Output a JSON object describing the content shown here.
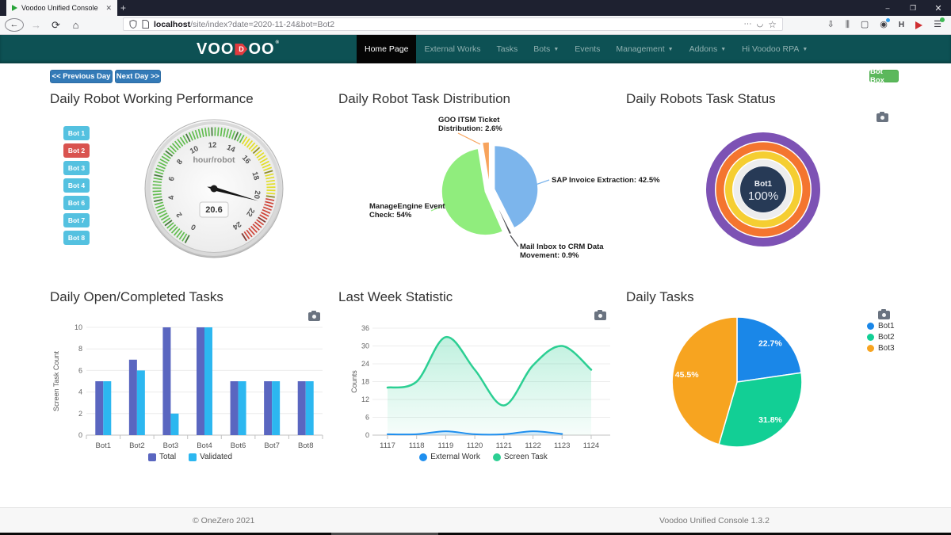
{
  "browser": {
    "tab": {
      "title": "Voodoo Unified Console",
      "close_glyph": "✕",
      "new_tab_glyph": "+"
    },
    "window_controls": {
      "minimize": "–",
      "restore": "❐",
      "close": "✕"
    },
    "toolbar": {
      "back_glyph": "←",
      "forward_glyph": "→",
      "reload_glyph": "⟳",
      "home_glyph": "⌂",
      "more_glyph": "⋯",
      "pocket_glyph": "◡",
      "star_glyph": "☆",
      "download_glyph": "⇩",
      "library_glyph": "⫼",
      "sidebar_glyph": "▢",
      "account_glyph": "◉",
      "extension_letter": "H",
      "menu_glyph": "☰"
    },
    "url": {
      "host": "localhost",
      "rest": "/site/index?date=2020-11-24&bot=Bot2"
    }
  },
  "navbar": {
    "logo": {
      "pre": "VOO",
      "badge_letter": "D",
      "post": "OO",
      "reg": "®"
    },
    "items": [
      {
        "label": "Home Page",
        "active": true,
        "caret": false
      },
      {
        "label": "External Works",
        "active": false,
        "caret": false
      },
      {
        "label": "Tasks",
        "active": false,
        "caret": false
      },
      {
        "label": "Bots",
        "active": false,
        "caret": true
      },
      {
        "label": "Events",
        "active": false,
        "caret": false
      },
      {
        "label": "Management",
        "active": false,
        "caret": true
      },
      {
        "label": "Addons",
        "active": false,
        "caret": true
      },
      {
        "label": "Hi Voodoo RPA",
        "active": false,
        "caret": true
      }
    ]
  },
  "day_nav": {
    "prev_label": "<< Previous Day",
    "next_label": "Next Day >>",
    "bot_box_label": "Bot Box"
  },
  "bot_buttons": {
    "items": [
      {
        "label": "Bot 1",
        "active": false
      },
      {
        "label": "Bot 2",
        "active": true
      },
      {
        "label": "Bot 3",
        "active": false
      },
      {
        "label": "Bot 4",
        "active": false
      },
      {
        "label": "Bot 6",
        "active": false
      },
      {
        "label": "Bot 7",
        "active": false
      },
      {
        "label": "Bot 8",
        "active": false
      }
    ]
  },
  "section_titles": {
    "gauge": "Daily Robot Working Performance",
    "pie1": "Daily Robot Task Distribution",
    "donut": "Daily Robots Task Status",
    "bar": "Daily Open/Completed Tasks",
    "area": "Last Week Statistic",
    "pie2": "Daily Tasks"
  },
  "footer": {
    "left": "© OneZero 2021",
    "right": "Voodoo Unified Console 1.3.2"
  },
  "chart_data": [
    {
      "id": "working-performance-gauge",
      "type": "gauge",
      "title": "Daily Robot Working Performance",
      "units_label": "hour/robot",
      "value": 20.6,
      "value_label": "20.6",
      "min": 0,
      "max": 24,
      "label_step": 2,
      "start_angle": 242,
      "sweep": 300,
      "bands": [
        {
          "from": 0,
          "to": 14.5,
          "color": "#62bd50"
        },
        {
          "from": 14.5,
          "to": 20,
          "color": "#e3de28"
        },
        {
          "from": 20,
          "to": 24,
          "color": "#cf4539"
        }
      ]
    },
    {
      "id": "task-distribution-pie",
      "type": "pie",
      "title": "Daily Robot Task Distribution",
      "slices": [
        {
          "label": "SAP Invoice Extraction",
          "value": 42.5,
          "color": "#7cb5ec",
          "label_lines": [
            "SAP Invoice Extraction: 42.5%"
          ]
        },
        {
          "label": "Mail Inbox to CRM Data Movement",
          "value": 0.9,
          "color": "#434348",
          "label_lines": [
            "Mail Inbox to CRM Data",
            "Movement: 0.9%"
          ]
        },
        {
          "label": "ManageEngine Event Check",
          "value": 54,
          "color": "#90ed7d",
          "label_lines": [
            "ManageEngine Event",
            "Check: 54%"
          ]
        },
        {
          "label": "GOO ITSM Ticket Distribution",
          "value": 2.6,
          "color": "#f7a35c",
          "label_lines": [
            "GOO ITSM Ticket",
            "Distribution: 2.6%"
          ]
        }
      ]
    },
    {
      "id": "task-status-donut",
      "type": "concentric_donut",
      "title": "Daily Robots Task Status",
      "center": {
        "label": "Bot1",
        "value": "100%",
        "color": "#273a56"
      },
      "rings": [
        {
          "name": "outer",
          "value": 100,
          "color": "#7d52b4"
        },
        {
          "name": "second",
          "value": 100,
          "color": "#f4752f"
        },
        {
          "name": "third",
          "value": 100,
          "color": "#f5ce32"
        },
        {
          "name": "inner",
          "value": 100,
          "color": "#ededed"
        }
      ]
    },
    {
      "id": "open-completed-bar",
      "type": "bar",
      "title": "Daily Open/Completed Tasks",
      "categories": [
        "Bot1",
        "Bot2",
        "Bot3",
        "Bot4",
        "Bot6",
        "Bot7",
        "Bot8"
      ],
      "series": [
        {
          "name": "Total",
          "color": "#5a66c0",
          "values": [
            5,
            7,
            10,
            10,
            5,
            5,
            5
          ]
        },
        {
          "name": "Validated",
          "color": "#2cb7f0",
          "values": [
            5,
            6,
            2,
            10,
            5,
            5,
            5
          ]
        }
      ],
      "xlabel": "",
      "ylabel": "Screen Task Count",
      "ylim": [
        0,
        10
      ],
      "ytick_step": 2,
      "grid": true,
      "legend_position": "bottom"
    },
    {
      "id": "last-week-area",
      "type": "area",
      "title": "Last Week Statistic",
      "x": [
        "1117",
        "1118",
        "1119",
        "1120",
        "1121",
        "1122",
        "1123",
        "1124"
      ],
      "series": [
        {
          "name": "External Work",
          "color": "#1f8fef",
          "values": [
            0.3,
            0.3,
            1.3,
            0.3,
            0.3,
            1.3,
            0.4,
            null
          ]
        },
        {
          "name": "Screen Task",
          "color": "#2ccf93",
          "values": [
            16,
            18,
            33,
            22,
            10,
            23.5,
            30,
            22
          ]
        }
      ],
      "xlabel": "",
      "ylabel": "Counts",
      "ylim": [
        0,
        36
      ],
      "ytick_step": 6,
      "grid": true,
      "legend_position": "bottom"
    },
    {
      "id": "daily-tasks-pie",
      "type": "pie",
      "title": "Daily Tasks",
      "slices": [
        {
          "label": "Bot1",
          "value": 22.7,
          "color": "#1a87e8"
        },
        {
          "label": "Bot2",
          "value": 31.8,
          "color": "#12cf95"
        },
        {
          "label": "Bot3",
          "value": 45.5,
          "color": "#f7a420"
        }
      ],
      "value_labels": [
        "22.7%",
        "31.8%",
        "45.5%"
      ],
      "legend_position": "right"
    }
  ]
}
